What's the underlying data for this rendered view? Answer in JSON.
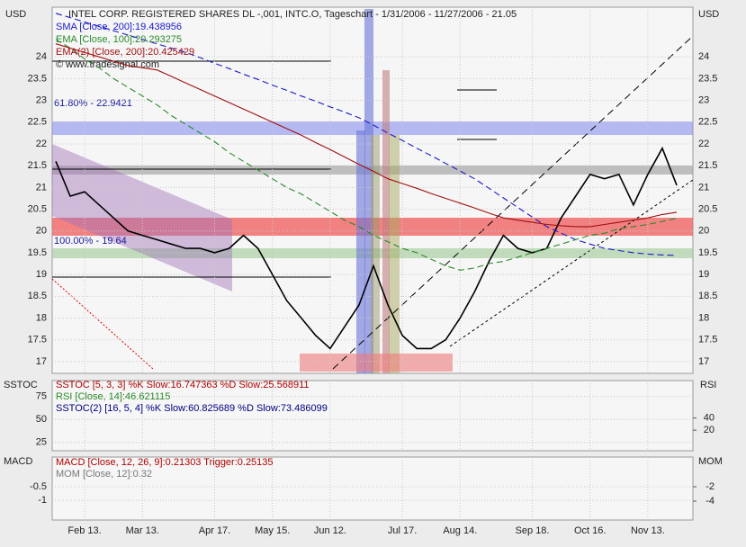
{
  "chart_data": [
    {
      "type": "line",
      "title": "INTEL CORP. REGISTERED SHARES DL -,001, INTC.O, Tageschart - 1/31/2006 - 11/27/2006 - 21.05",
      "y_label": "USD",
      "source": "© www.tradesignal.com",
      "annotations": [
        "61.80% - 22.9421",
        "100.00% - 19.64"
      ],
      "categories": [
        null,
        null,
        "Feb 13.",
        null,
        null,
        null,
        "Mar 13.",
        null,
        null,
        null,
        null,
        "Apr 17.",
        null,
        null,
        null,
        "May 15.",
        null,
        null,
        null,
        "Jun 12.",
        null,
        null,
        null,
        null,
        "Jul 17.",
        null,
        null,
        null,
        "Aug 14.",
        null,
        null,
        null,
        null,
        "Sep 18.",
        null,
        null,
        null,
        "Oct 16.",
        null,
        null,
        null,
        "Nov 13.",
        null,
        null
      ],
      "ylim": [
        16.73,
        25.14
      ],
      "yticks": [
        17,
        17.5,
        18,
        18.5,
        19,
        19.5,
        20,
        20.5,
        21,
        21.5,
        22,
        22.5,
        23,
        23.5,
        24
      ],
      "grid": true,
      "series": [
        {
          "color": "#000000",
          "values": [
            21.6,
            20.8,
            20.9,
            20.6,
            20.3,
            20.0,
            19.9,
            19.8,
            19.7,
            19.6,
            19.6,
            19.5,
            19.6,
            19.9,
            19.6,
            19.0,
            18.4,
            18.0,
            17.6,
            17.3,
            17.8,
            18.3,
            19.2,
            18.3,
            17.6,
            17.3,
            17.3,
            17.5,
            18.0,
            18.6,
            19.3,
            19.9,
            19.6,
            19.5,
            19.6,
            20.3,
            20.8,
            21.3,
            21.2,
            21.3,
            20.6,
            21.3,
            21.9,
            21.05
          ]
        },
        {
          "name": "SMA [Close, 200]:19.438956",
          "color": "#1a1acc",
          "dashed": true,
          "values": [
            25.0,
            24.9,
            24.8,
            24.7,
            24.6,
            24.5,
            24.4,
            24.3,
            24.2,
            24.1,
            23.98,
            23.85,
            23.73,
            23.6,
            23.48,
            23.35,
            23.23,
            23.1,
            22.98,
            22.85,
            22.73,
            22.6,
            22.43,
            22.25,
            22.08,
            21.9,
            21.73,
            21.55,
            21.38,
            21.2,
            20.98,
            20.76,
            20.54,
            20.32,
            20.1,
            19.95,
            19.8,
            19.7,
            19.6,
            19.55,
            19.5,
            19.47,
            19.45,
            19.44
          ]
        },
        {
          "name": "EMA [Close, 100]:20.293275",
          "color": "#2a8a2a",
          "dashed": true,
          "values": [
            24.4,
            24.2,
            23.95,
            23.75,
            23.5,
            23.3,
            23.1,
            22.9,
            22.65,
            22.45,
            22.25,
            22.05,
            21.8,
            21.6,
            21.4,
            21.2,
            21.0,
            20.85,
            20.65,
            20.45,
            20.25,
            20.1,
            19.9,
            19.75,
            19.6,
            19.5,
            19.35,
            19.2,
            19.1,
            19.15,
            19.25,
            19.3,
            19.4,
            19.5,
            19.6,
            19.7,
            19.8,
            19.9,
            19.95,
            20.05,
            20.1,
            20.15,
            20.22,
            20.29
          ]
        },
        {
          "name": "EMA(2) [Close, 200]:20.425429",
          "color": "#a01010",
          "dashed": false,
          "values": [
            24.3,
            24.2,
            24.1,
            24.0,
            23.9,
            23.8,
            23.75,
            23.7,
            23.55,
            23.4,
            23.25,
            23.1,
            22.95,
            22.8,
            22.65,
            22.5,
            22.35,
            22.2,
            22.03,
            21.87,
            21.7,
            21.53,
            21.37,
            21.2,
            21.09,
            20.98,
            20.86,
            20.75,
            20.64,
            20.53,
            20.41,
            20.3,
            20.25,
            20.2,
            20.15,
            20.12,
            20.1,
            20.1,
            20.15,
            20.2,
            20.25,
            20.3,
            20.38,
            20.43
          ]
        }
      ]
    },
    {
      "type": "line",
      "y_label": "SSTOC",
      "y2_label": "RSI",
      "legend": [
        {
          "name": "SSTOC [5, 3, 3] %K Slow:16.747363 %D Slow:25.568911",
          "color": "#b00000"
        },
        {
          "name": "RSI [Close, 14]:46.621115",
          "color": "#2a8a2a"
        },
        {
          "name": "SSTOC(2) [16, 5, 4] %K Slow:60.825689 %D Slow:73.486099",
          "color": "#000080"
        }
      ],
      "ylim": [
        15.8,
        92.3
      ],
      "yticks": [
        25,
        50,
        75
      ],
      "y2lim": [
        -13.8,
        101.5
      ],
      "y2ticks": [
        20,
        40
      ]
    },
    {
      "type": "line",
      "y_label": "MACD",
      "y2_label": "MOM",
      "legend": [
        {
          "name": "MACD [Close, 12, 26, 9]:0.21303 Trigger:0.25135",
          "color": "#b00000"
        },
        {
          "name": "MOM [Close, 12]:0.32",
          "color": "#777777"
        }
      ],
      "ylim": [
        -1.73,
        0.6
      ],
      "yticks": [
        -1,
        -0.5
      ],
      "y2lim": [
        -6.625,
        2.125
      ],
      "y2ticks": [
        -4,
        -2
      ]
    }
  ]
}
